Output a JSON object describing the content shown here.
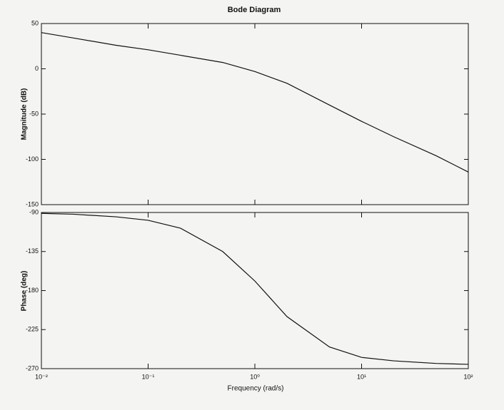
{
  "chart_data": [
    {
      "type": "line",
      "title": "Bode Diagram",
      "ylabel": "Magnitude (dB)",
      "xlog": true,
      "xlim": [
        0.01,
        100
      ],
      "ylim": [
        -150,
        50
      ],
      "yticks": [
        50,
        0,
        -50,
        -100,
        -150
      ],
      "color": "#111111",
      "x": [
        0.01,
        0.02,
        0.05,
        0.1,
        0.2,
        0.5,
        1,
        2,
        5,
        10,
        20,
        50,
        100
      ],
      "values": [
        40,
        34,
        26,
        21,
        15,
        7,
        -3,
        -16,
        -40,
        -58,
        -75,
        -96,
        -114
      ]
    },
    {
      "type": "line",
      "ylabel": "Phase (deg)",
      "xlabel": "Frequency (rad/s)",
      "xlog": true,
      "xlim": [
        0.01,
        100
      ],
      "ylim": [
        -270,
        -90
      ],
      "yticks": [
        -90,
        -135,
        -180,
        -225,
        -270
      ],
      "color": "#111111",
      "xticks": [
        {
          "value": 0.01,
          "label": "10⁻²"
        },
        {
          "value": 0.1,
          "label": "10⁻¹"
        },
        {
          "value": 1,
          "label": "10⁰"
        },
        {
          "value": 10,
          "label": "10¹"
        },
        {
          "value": 100,
          "label": "10²"
        }
      ],
      "x": [
        0.01,
        0.02,
        0.05,
        0.1,
        0.2,
        0.5,
        1,
        2,
        5,
        10,
        20,
        50,
        100
      ],
      "values": [
        -91,
        -92,
        -95,
        -99,
        -108,
        -135,
        -169,
        -210,
        -245,
        -257,
        -261,
        -264,
        -265
      ]
    }
  ]
}
